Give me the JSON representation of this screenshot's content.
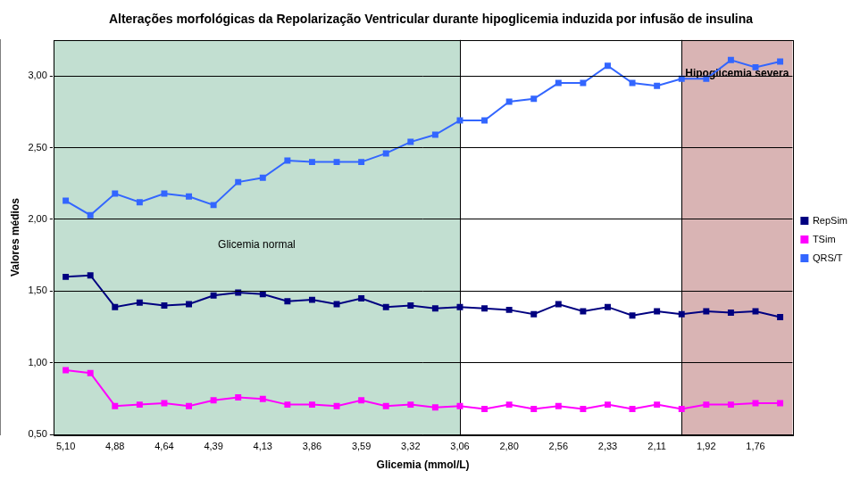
{
  "chart_data": {
    "type": "line",
    "title": "Alterações morfológicas da Repolarização Ventricular durante hipoglicemia induzida por infusão de insulina",
    "x_label": "Glicemia (mmol/L)",
    "y_label": "Valores médios",
    "categories": [
      "5,10",
      null,
      "4,88",
      null,
      "4,64",
      null,
      "4,39",
      null,
      "4,13",
      null,
      "3,86",
      null,
      "3,59",
      null,
      "3,32",
      null,
      "3,06",
      null,
      "2,80",
      null,
      "2,56",
      null,
      "2,33",
      null,
      "2,11",
      null,
      "1,92",
      null,
      "1,76",
      null
    ],
    "series": [
      {
        "name": "RepSim",
        "color": "#000080",
        "marker": "square",
        "line_style": "solid",
        "values": [
          1.6,
          1.61,
          1.39,
          1.42,
          1.4,
          1.41,
          1.47,
          1.49,
          1.48,
          1.43,
          1.44,
          1.41,
          1.45,
          1.39,
          1.4,
          1.38,
          1.39,
          1.38,
          1.37,
          1.34,
          1.41,
          1.36,
          1.39,
          1.33,
          1.36,
          1.34,
          1.36,
          1.35,
          1.36,
          1.32
        ]
      },
      {
        "name": "TSim",
        "color": "#ff00ff",
        "marker": "square",
        "line_style": "solid",
        "values": [
          0.95,
          0.93,
          0.7,
          0.71,
          0.72,
          0.7,
          0.74,
          0.76,
          0.75,
          0.71,
          0.71,
          0.7,
          0.74,
          0.7,
          0.71,
          0.69,
          0.7,
          0.68,
          0.71,
          0.68,
          0.7,
          0.68,
          0.71,
          0.68,
          0.71,
          0.68,
          0.71,
          0.71,
          0.72,
          0.72
        ]
      },
      {
        "name": "QRS/T",
        "color": "#3366ff",
        "marker": "square",
        "line_style": "solid",
        "values": [
          2.13,
          2.03,
          2.18,
          2.12,
          2.18,
          2.16,
          2.1,
          2.26,
          2.29,
          2.41,
          2.4,
          2.4,
          2.4,
          2.46,
          2.54,
          2.59,
          2.69,
          2.69,
          2.82,
          2.84,
          2.95,
          2.95,
          3.07,
          2.95,
          2.93,
          2.98,
          2.98,
          3.11,
          3.06,
          3.1
        ]
      }
    ],
    "regions": [
      {
        "label": "Glicemia normal",
        "start": 0,
        "end": 16,
        "color": "#c2dfd1"
      },
      {
        "label": "Hipoglicemia severa",
        "start": 25,
        "end": 29,
        "color": "#d9b4b4"
      }
    ],
    "ylim": [
      0.5,
      3.25
    ],
    "yticks": [
      {
        "value": 0.5,
        "label": "0,50"
      },
      {
        "value": 1.0,
        "label": "1,00"
      },
      {
        "value": 1.5,
        "label": "1,50"
      },
      {
        "value": 2.0,
        "label": "2,00"
      },
      {
        "value": 2.5,
        "label": "2,50"
      },
      {
        "value": 3.0,
        "label": "3,00"
      }
    ],
    "grid": true,
    "legend": "right"
  }
}
